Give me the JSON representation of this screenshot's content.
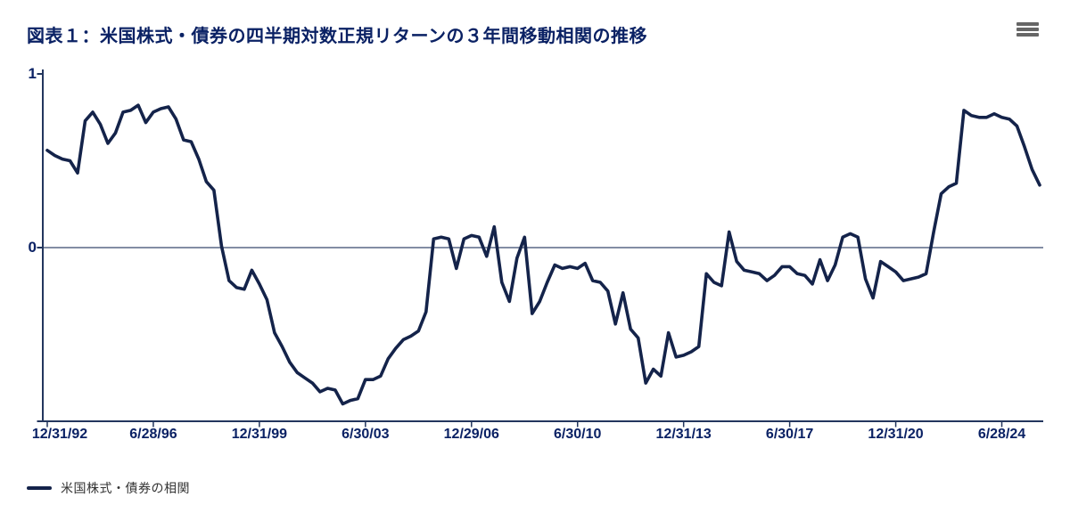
{
  "header": {
    "title": "図表１：米国株式・債券の四半期対数正規リターンの３年間移動相関の推移"
  },
  "icons": {
    "context_menu": "hamburger-menu-icon"
  },
  "colors": {
    "background": "#ffffff",
    "title": "#0a2164",
    "axis_label": "#0a2164",
    "line": "#14234a",
    "axis": "#23365e",
    "legend_text": "#333333",
    "menu_icon": "#666666"
  },
  "legend": {
    "items": [
      {
        "label": "米国株式・債券の相関"
      }
    ]
  },
  "chart_data": {
    "type": "line",
    "title": "図表１：米国株式・債券の四半期対数正規リターンの３年間移動相関の推移",
    "series": [
      {
        "name": "米国株式・債券の相関",
        "values": [
          0.56,
          0.53,
          0.51,
          0.5,
          0.43,
          0.73,
          0.78,
          0.71,
          0.6,
          0.66,
          0.78,
          0.79,
          0.82,
          0.72,
          0.78,
          0.8,
          0.81,
          0.74,
          0.62,
          0.61,
          0.51,
          0.38,
          0.33,
          0.01,
          -0.19,
          -0.23,
          -0.24,
          -0.13,
          -0.21,
          -0.3,
          -0.49,
          -0.57,
          -0.66,
          -0.72,
          -0.75,
          -0.78,
          -0.83,
          -0.81,
          -0.82,
          -0.9,
          -0.88,
          -0.87,
          -0.76,
          -0.76,
          -0.74,
          -0.64,
          -0.58,
          -0.53,
          -0.51,
          -0.48,
          -0.37,
          0.05,
          0.06,
          0.05,
          -0.12,
          0.05,
          0.07,
          0.06,
          -0.05,
          0.12,
          -0.2,
          -0.31,
          -0.06,
          0.06,
          -0.38,
          -0.31,
          -0.2,
          -0.1,
          -0.12,
          -0.11,
          -0.12,
          -0.09,
          -0.19,
          -0.2,
          -0.25,
          -0.44,
          -0.26,
          -0.47,
          -0.52,
          -0.78,
          -0.7,
          -0.74,
          -0.49,
          -0.63,
          -0.62,
          -0.6,
          -0.57,
          -0.15,
          -0.2,
          -0.22,
          0.09,
          -0.08,
          -0.13,
          -0.14,
          -0.15,
          -0.19,
          -0.16,
          -0.11,
          -0.11,
          -0.15,
          -0.16,
          -0.21,
          -0.07,
          -0.19,
          -0.1,
          0.06,
          0.08,
          0.06,
          -0.18,
          -0.29,
          -0.08,
          -0.11,
          -0.14,
          -0.19,
          -0.18,
          -0.17,
          -0.15,
          0.09,
          0.31,
          0.35,
          0.37,
          0.79,
          0.76,
          0.75,
          0.75,
          0.77,
          0.75,
          0.74,
          0.7,
          0.58,
          0.45,
          0.36
        ]
      }
    ],
    "x_tick_labels": [
      "12/31/92",
      "6/28/96",
      "12/31/99",
      "6/30/03",
      "12/29/06",
      "6/30/10",
      "12/31/13",
      "6/30/17",
      "12/31/20",
      "6/28/24"
    ],
    "x_tick_every": 14,
    "y_tick_labels": [
      {
        "label": "1",
        "value": 1
      },
      {
        "label": "0",
        "value": 0
      }
    ],
    "y_tick_marks": [
      1,
      0,
      -1
    ],
    "ylim": [
      -1,
      1
    ],
    "grid": "zero-line-only",
    "legend_position": "bottom-left"
  }
}
